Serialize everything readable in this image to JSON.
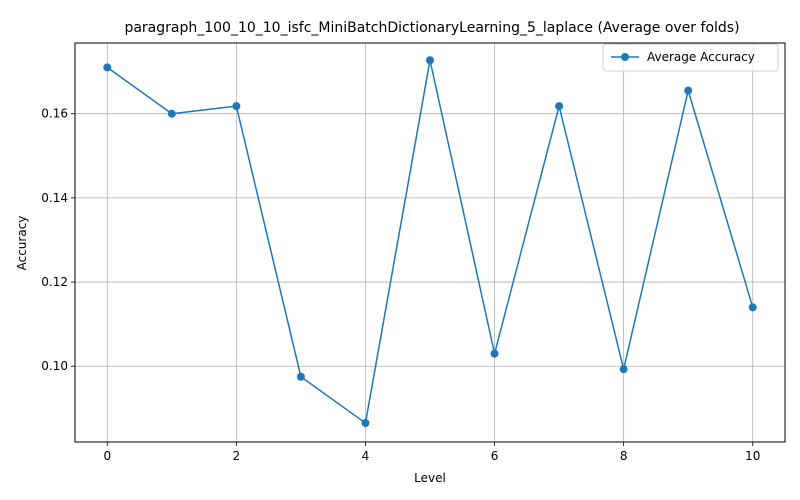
{
  "chart_data": {
    "type": "line",
    "title": "paragraph_100_10_10_isfc_MiniBatchDictionaryLearning_5_laplace (Average over folds)",
    "xlabel": "Level",
    "ylabel": "Accuracy",
    "xlim": [
      -0.5,
      10.5
    ],
    "ylim": [
      0.082,
      0.1768
    ],
    "xticks": [
      0,
      2,
      4,
      6,
      8,
      10
    ],
    "yticks": [
      0.1,
      0.12,
      0.14,
      0.16
    ],
    "ytick_labels": [
      "0.10",
      "0.12",
      "0.14",
      "0.16"
    ],
    "grid": true,
    "legend_position": "top-right",
    "series": [
      {
        "name": "Average Accuracy",
        "color": "#1f77b4",
        "marker": "circle",
        "x": [
          0,
          1,
          2,
          3,
          4,
          5,
          6,
          7,
          8,
          9,
          10
        ],
        "y": [
          0.171,
          0.16,
          0.1618,
          0.0975,
          0.0865,
          0.1727,
          0.103,
          0.1618,
          0.0993,
          0.1655,
          0.114
        ]
      }
    ]
  }
}
